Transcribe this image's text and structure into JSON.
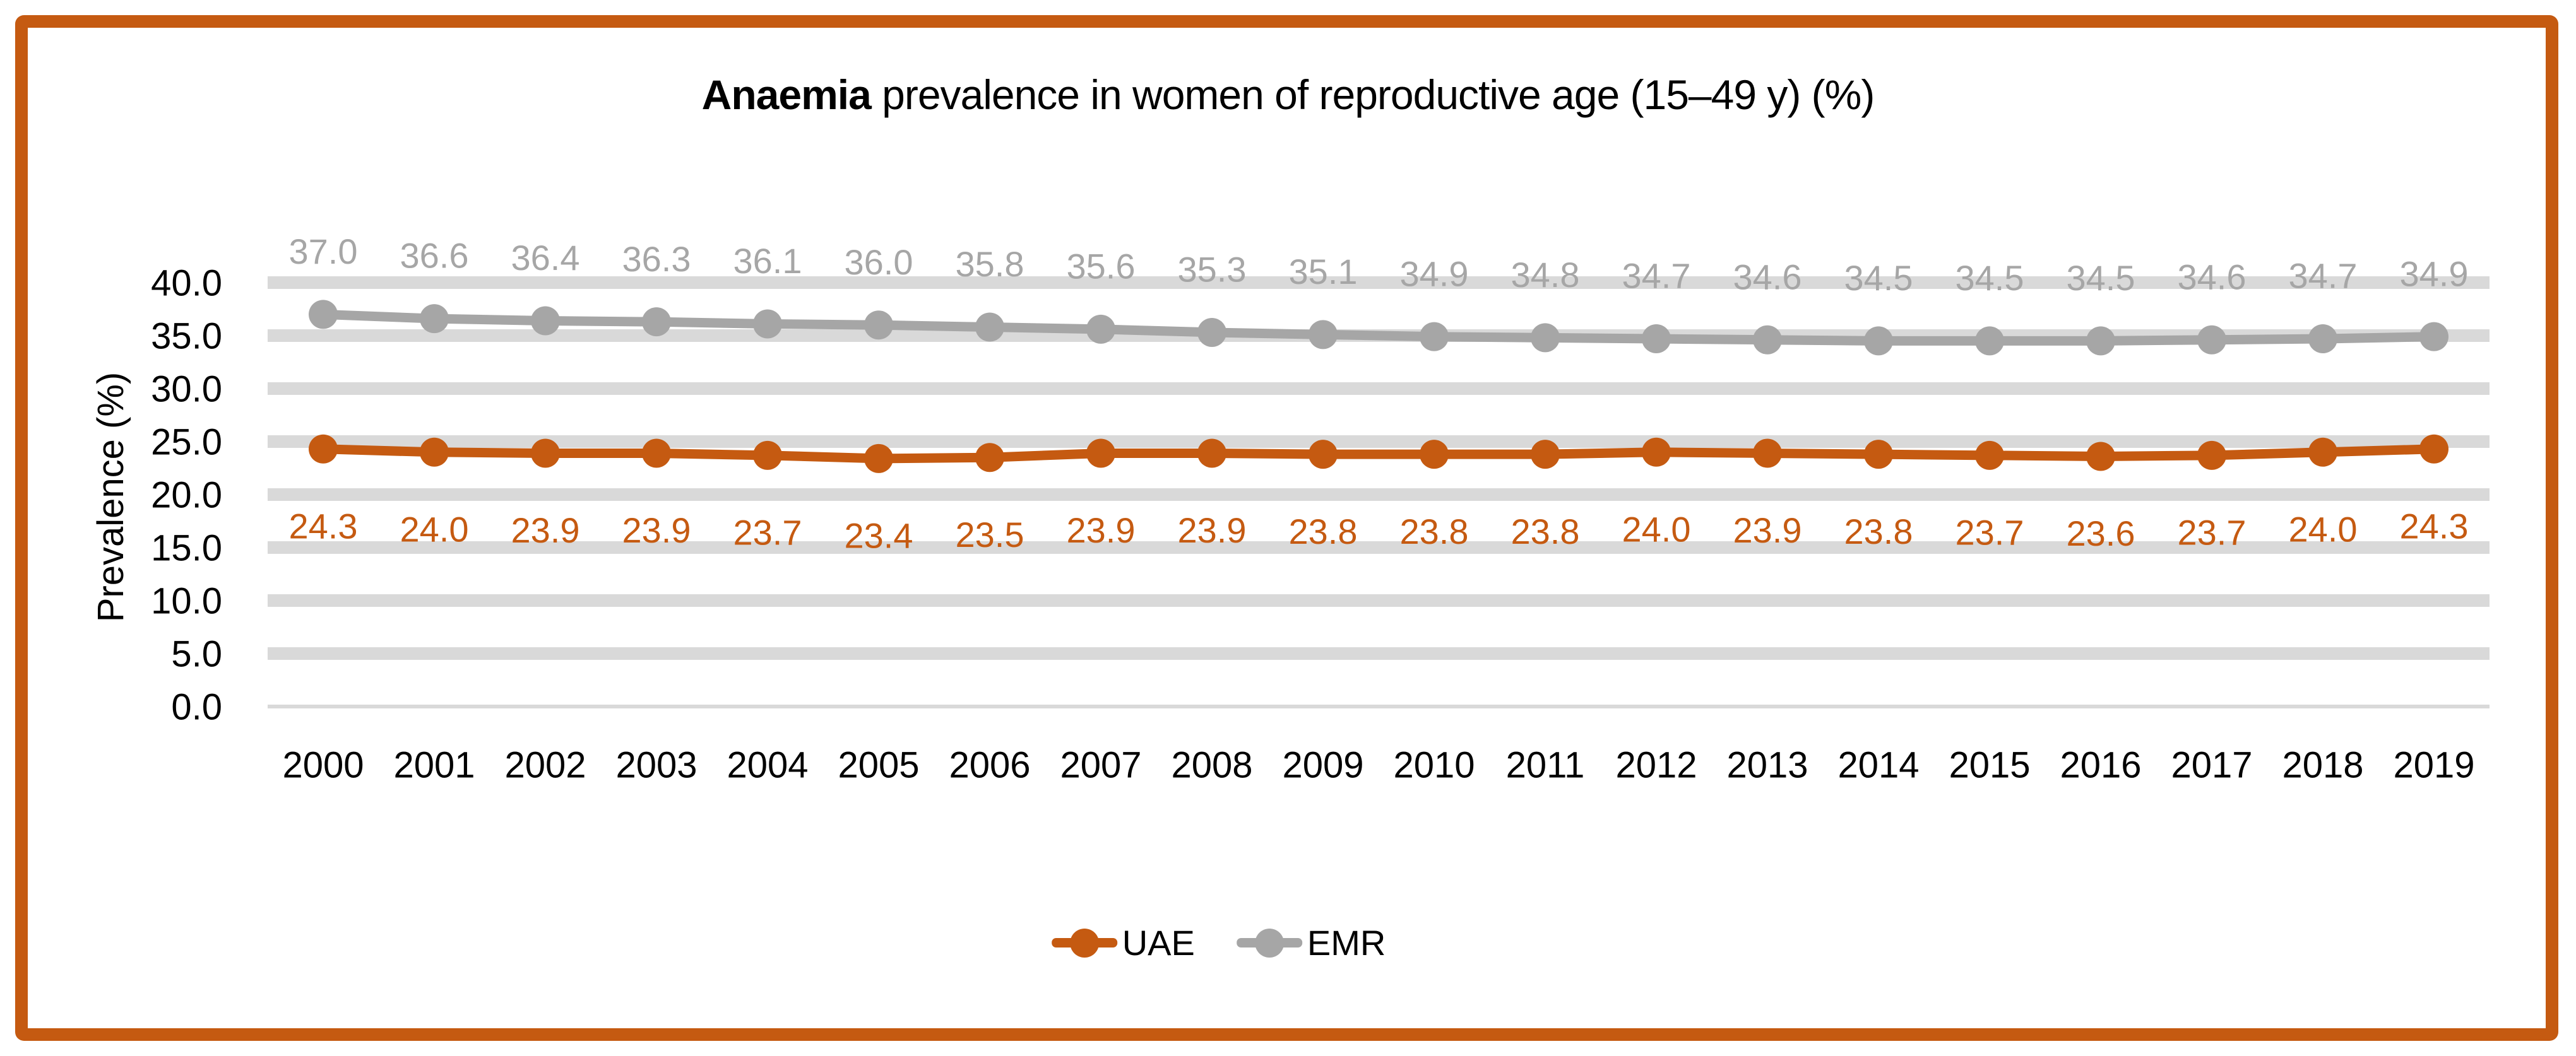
{
  "frame": {
    "border_color": "#C55A11"
  },
  "title": {
    "bold": "Anaemia",
    "rest": " prevalence in women of reproductive age (15–49 y) (%)"
  },
  "chart_data": {
    "type": "line",
    "title": "Anaemia prevalence in women of reproductive age (15–49 y) (%)",
    "categories": [
      "2000",
      "2001",
      "2002",
      "2003",
      "2004",
      "2005",
      "2006",
      "2007",
      "2008",
      "2009",
      "2010",
      "2011",
      "2012",
      "2013",
      "2014",
      "2015",
      "2016",
      "2017",
      "2018",
      "2019"
    ],
    "series": [
      {
        "name": "UAE",
        "color": "#C55A11",
        "label_position": "below",
        "values": [
          24.3,
          24.0,
          23.9,
          23.9,
          23.7,
          23.4,
          23.5,
          23.9,
          23.9,
          23.8,
          23.8,
          23.8,
          24.0,
          23.9,
          23.8,
          23.7,
          23.6,
          23.7,
          24.0,
          24.3
        ]
      },
      {
        "name": "EMR",
        "color": "#A6A6A6",
        "label_position": "above",
        "values": [
          37.0,
          36.6,
          36.4,
          36.3,
          36.1,
          36.0,
          35.8,
          35.6,
          35.3,
          35.1,
          34.9,
          34.8,
          34.7,
          34.6,
          34.5,
          34.5,
          34.5,
          34.6,
          34.7,
          34.9
        ]
      }
    ],
    "xlabel": "",
    "ylabel": "Prevalence (%)",
    "ylim": [
      0,
      40
    ],
    "y_ticks": [
      40,
      35,
      30,
      25,
      20,
      15,
      10,
      5,
      0
    ],
    "y_tick_format": "one-decimal",
    "grid": "horizontal",
    "gridline_color": "#D9D9D9",
    "axis_text_color": "#000000",
    "data_labels": true,
    "legend_position": "bottom"
  }
}
